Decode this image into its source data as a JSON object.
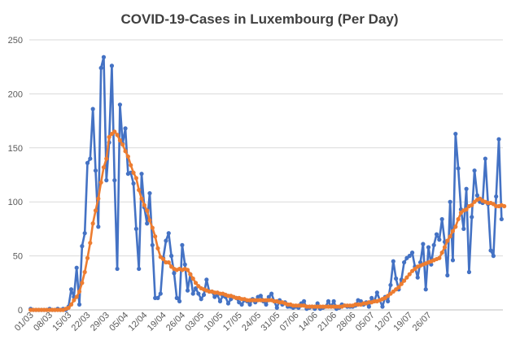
{
  "chart_data": {
    "type": "line",
    "title": "COVID-19-Cases in Luxembourg (Per Day)",
    "xlabel": "",
    "ylabel": "",
    "ylim": [
      0,
      250
    ],
    "y_ticks": [
      0,
      50,
      100,
      150,
      200,
      250
    ],
    "x_tick_labels": [
      "01/03",
      "08/03",
      "15/03",
      "22/03",
      "29/03",
      "05/04",
      "12/04",
      "19/04",
      "26/04",
      "03/05",
      "10/05",
      "17/05",
      "24/05",
      "31/05",
      "07/06",
      "14/06",
      "21/06",
      "28/06",
      "05/07",
      "12/07",
      "19/07",
      "26/07"
    ],
    "grid": true,
    "legend": "none",
    "series": [
      {
        "color": "#4472C4",
        "marker": "circle",
        "values": [
          1,
          0,
          0,
          0,
          0,
          0,
          0,
          1,
          0,
          0,
          1,
          0,
          1,
          0,
          3,
          19,
          12,
          39,
          5,
          59,
          71,
          136,
          140,
          186,
          129,
          77,
          224,
          234,
          120,
          155,
          226,
          120,
          38,
          190,
          154,
          168,
          126,
          127,
          117,
          75,
          38,
          126,
          95,
          80,
          108,
          60,
          11,
          11,
          15,
          48,
          64,
          71,
          50,
          34,
          11,
          8,
          60,
          42,
          18,
          33,
          15,
          20,
          15,
          10,
          14,
          28,
          17,
          17,
          12,
          14,
          8,
          13,
          12,
          6,
          10,
          12,
          11,
          7,
          5,
          9,
          8,
          5,
          10,
          7,
          12,
          13,
          8,
          5,
          12,
          15,
          8,
          2,
          9,
          5,
          7,
          3,
          3,
          2,
          3,
          2,
          6,
          8,
          1,
          2,
          3,
          1,
          6,
          1,
          2,
          3,
          8,
          3,
          8,
          1,
          2,
          5,
          4,
          3,
          3,
          3,
          4,
          9,
          8,
          5,
          7,
          3,
          11,
          8,
          16,
          9,
          3,
          12,
          8,
          23,
          45,
          29,
          19,
          28,
          44,
          48,
          50,
          53,
          40,
          30,
          44,
          61,
          19,
          58,
          42,
          60,
          70,
          65,
          84,
          63,
          32,
          100,
          46,
          163,
          131,
          93,
          75,
          112,
          35,
          86,
          129,
          106,
          100,
          99,
          140,
          98,
          55,
          50,
          105,
          158,
          84
        ],
        "data_labels": false
      },
      {
        "color": "#ED7D31",
        "marker": "circle",
        "values": [
          0,
          0,
          0,
          0,
          0,
          0,
          0,
          0,
          0,
          0,
          0,
          0,
          0,
          1,
          2,
          5,
          9,
          12,
          17,
          25,
          35,
          48,
          62,
          80,
          92,
          103,
          118,
          132,
          140,
          160,
          163,
          165,
          162,
          157,
          153,
          147,
          142,
          134,
          127,
          122,
          111,
          103,
          97,
          92,
          83,
          76,
          68,
          57,
          49,
          47,
          44,
          44,
          40,
          38,
          37,
          38,
          37,
          38,
          37,
          33,
          29,
          25,
          22,
          20,
          19,
          18,
          17,
          17,
          16,
          16,
          15,
          15,
          14,
          13,
          13,
          12,
          11,
          11,
          10,
          10,
          9,
          9,
          9,
          9,
          9,
          9,
          9,
          9,
          9,
          9,
          8,
          8,
          7,
          7,
          6,
          5,
          5,
          4,
          4,
          4,
          4,
          4,
          3,
          3,
          3,
          3,
          3,
          3,
          3,
          3,
          3,
          3,
          3,
          3,
          3,
          3,
          4,
          4,
          4,
          4,
          5,
          5,
          5,
          6,
          6,
          7,
          7,
          8,
          8,
          9,
          10,
          11,
          13,
          15,
          17,
          19,
          21,
          24,
          27,
          30,
          33,
          36,
          38,
          40,
          41,
          42,
          43,
          44,
          45,
          46,
          47,
          48,
          53,
          58,
          64,
          68,
          73,
          77,
          84,
          90,
          92,
          93,
          96,
          97,
          100,
          102,
          103,
          101,
          100,
          99,
          99,
          98,
          96,
          96,
          97,
          96
        ],
        "data_labels": false
      }
    ]
  }
}
